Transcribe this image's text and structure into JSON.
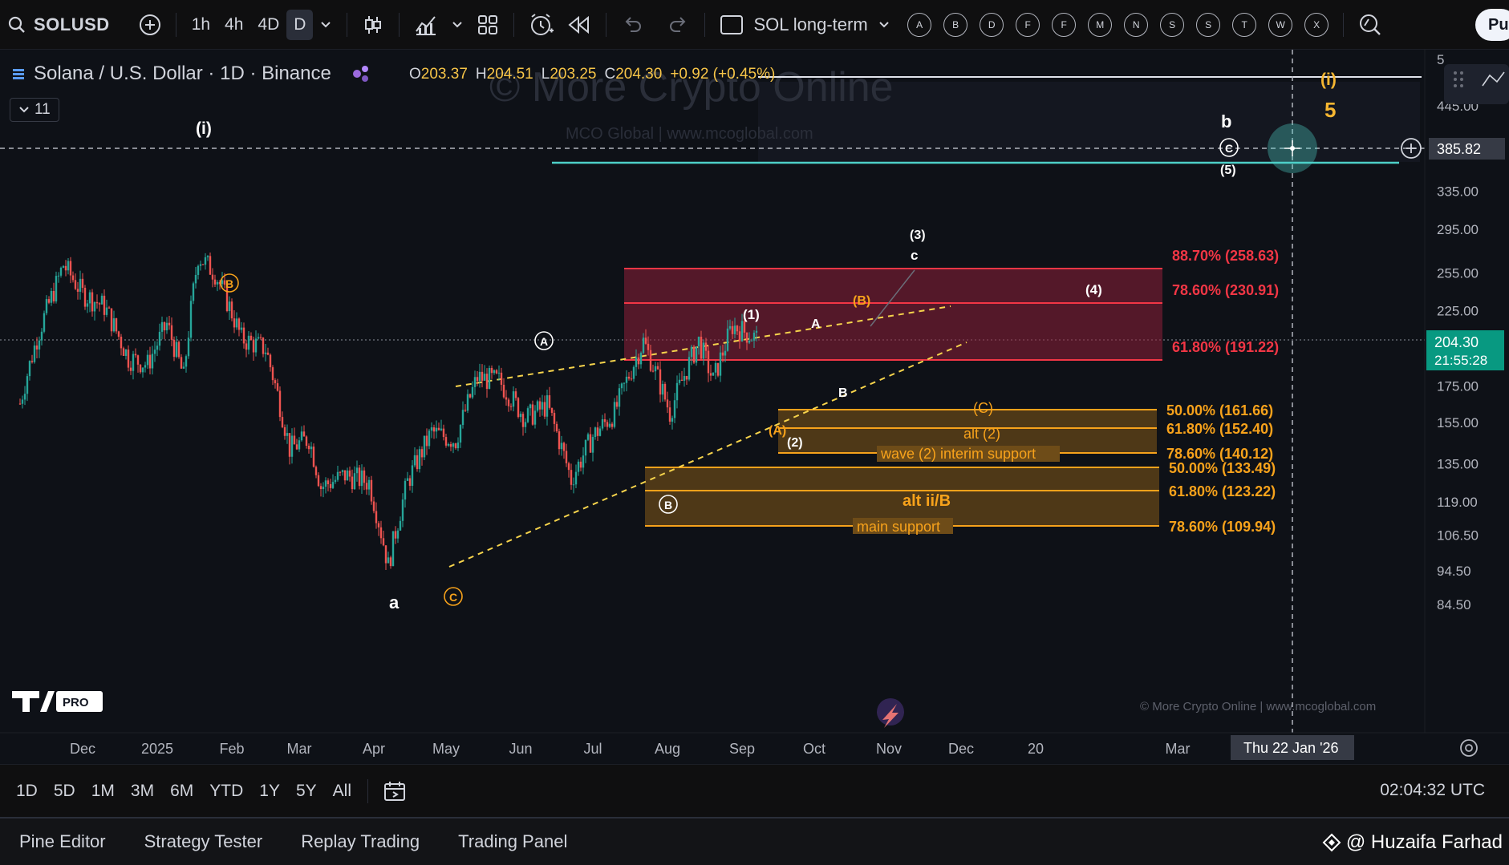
{
  "toolbar": {
    "symbol": "SOLUSD",
    "timeframes": [
      "1h",
      "4h",
      "4D",
      "D"
    ],
    "active_timeframe": "D",
    "layout_name": "SOL long-term",
    "drawing_letters": [
      "A",
      "B",
      "D",
      "F",
      "F",
      "M",
      "N",
      "S",
      "S",
      "T",
      "W",
      "X"
    ],
    "publish_label": "Pu"
  },
  "legend": {
    "title": "Solana / U.S. Dollar · 1D · Binance",
    "open_label": "O",
    "open": "203.37",
    "high_label": "H",
    "high": "204.51",
    "low_label": "L",
    "low": "203.25",
    "close_label": "C",
    "close": "204.30",
    "change": "+0.92 (+0.45%)",
    "indicators_count": "11"
  },
  "watermark": {
    "main": "© More Crypto Online",
    "sub": "MCO Global  |  www.mcoglobal.com",
    "footer": "© More Crypto Online  |  www.mcoglobal.com"
  },
  "chart_data": {
    "type": "line",
    "series": [
      {
        "values": [
          [
            "2024-11-05",
            165
          ],
          [
            "2024-11-12",
            205
          ],
          [
            "2024-11-20",
            245
          ],
          [
            "2024-11-23",
            262
          ],
          [
            "2024-12-01",
            238
          ],
          [
            "2024-12-10",
            228
          ],
          [
            "2024-12-20",
            192
          ],
          [
            "2024-12-28",
            188
          ],
          [
            "2025-01-05",
            215
          ],
          [
            "2025-01-12",
            180
          ],
          [
            "2025-01-18",
            270
          ],
          [
            "2025-01-25",
            255
          ],
          [
            "2025-02-05",
            205
          ],
          [
            "2025-02-15",
            198
          ],
          [
            "2025-02-25",
            142
          ],
          [
            "2025-03-05",
            147
          ],
          [
            "2025-03-10",
            125
          ],
          [
            "2025-03-20",
            130
          ],
          [
            "2025-03-30",
            127
          ],
          [
            "2025-04-07",
            96
          ],
          [
            "2025-04-15",
            127
          ],
          [
            "2025-04-25",
            150
          ],
          [
            "2025-05-05",
            146
          ],
          [
            "2025-05-14",
            180
          ],
          [
            "2025-05-23",
            178
          ],
          [
            "2025-06-03",
            157
          ],
          [
            "2025-06-12",
            164
          ],
          [
            "2025-06-22",
            128
          ],
          [
            "2025-07-01",
            148
          ],
          [
            "2025-07-10",
            160
          ],
          [
            "2025-07-22",
            203
          ],
          [
            "2025-08-02",
            160
          ],
          [
            "2025-08-14",
            203
          ],
          [
            "2025-08-20",
            178
          ],
          [
            "2025-08-28",
            214
          ],
          [
            "2025-09-08",
            204.3
          ]
        ]
      }
    ],
    "y_ticks": [
      "445.00",
      "335.00",
      "295.00",
      "255.00",
      "225.00",
      "175.00",
      "155.00",
      "135.00",
      "119.00",
      "106.50",
      "94.50",
      "84.50"
    ],
    "y_tick_partial": "5",
    "x_ticks": [
      "Dec",
      "2025",
      "Feb",
      "Mar",
      "Apr",
      "May",
      "Jun",
      "Jul",
      "Aug",
      "Sep",
      "Oct",
      "Nov",
      "Dec",
      "20",
      "Mar"
    ],
    "crosshair_date": "Thu 22 Jan '26",
    "crosshair_price": "385.82",
    "last_price": "204.30",
    "countdown": "21:55:28",
    "fib_levels": [
      {
        "label": "88.70% (258.63)",
        "value": 258.63
      },
      {
        "label": "78.60% (230.91)",
        "value": 230.91
      },
      {
        "label": "61.80% (191.22)",
        "value": 191.22
      },
      {
        "label": "50.00% (161.66)",
        "value": 161.66
      },
      {
        "label": "61.80% (152.40)",
        "value": 152.4
      },
      {
        "label": "78.60% (140.12)",
        "value": 140.12
      },
      {
        "label": "50.00% (133.49)",
        "value": 133.49
      },
      {
        "label": "61.80% (123.22)",
        "value": 123.22
      },
      {
        "label": "78.60% (109.94)",
        "value": 109.94
      }
    ],
    "zone_labels": [
      "(C)",
      "alt (2)",
      "wave (2) interim support",
      "alt ii/B",
      "main support"
    ],
    "wave_labels": [
      "(i)",
      "B",
      "a",
      "C",
      "A",
      "B",
      "(1)",
      "A",
      "(B)",
      "B",
      "(A)",
      "(2)",
      "(3)",
      "c",
      "(4)",
      "b",
      "C",
      "(5)",
      "(i)",
      "5"
    ],
    "colors": {
      "up": "#26a69a",
      "down": "#ef5350",
      "fib_red": "#f23645",
      "fib_orange": "#f7a21b",
      "label_orange": "#ffb74d",
      "cyan": "#4dd0c8"
    }
  },
  "periods": [
    "1D",
    "5D",
    "1M",
    "3M",
    "6M",
    "YTD",
    "1Y",
    "5Y",
    "All"
  ],
  "clock": "02:04:32 UTC",
  "bottom_tabs": [
    "Pine Editor",
    "Strategy Tester",
    "Replay Trading",
    "Trading Panel"
  ],
  "credit": "@ Huzaifa Farhad"
}
